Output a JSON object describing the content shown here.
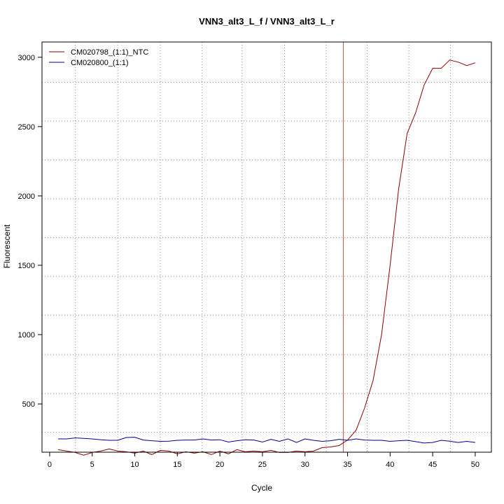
{
  "chart_data": {
    "type": "line",
    "title": "VNN3_alt3_L_f / VNN3_alt3_L_r",
    "xlabel": "Cycle",
    "ylabel": "Fluorescent",
    "xlim": [
      -0.9,
      51.9
    ],
    "ylim": [
      152,
      3110
    ],
    "x_ticks": [
      0,
      5,
      10,
      15,
      20,
      25,
      30,
      35,
      40,
      45,
      50
    ],
    "y_ticks": [
      500,
      1000,
      1500,
      2000,
      2500,
      3000
    ],
    "x_grid": [
      3,
      8,
      13,
      17.9,
      22.6,
      27.6,
      32.5,
      37.3,
      42.2,
      47.1
    ],
    "y_grid": [
      295,
      575,
      855,
      1140,
      1420,
      1700,
      1980,
      2260,
      2540,
      2820
    ],
    "grid": true,
    "legend_position": "top-left",
    "threshold_cycle": 34.5,
    "threshold_color": "#c0504d",
    "x": [
      1,
      2,
      3,
      4,
      5,
      6,
      7,
      8,
      9,
      10,
      11,
      12,
      13,
      14,
      15,
      16,
      17,
      18,
      19,
      20,
      21,
      22,
      23,
      24,
      25,
      26,
      27,
      28,
      29,
      30,
      31,
      32,
      33,
      34,
      35,
      36,
      37,
      38,
      39,
      40,
      41,
      42,
      43,
      44,
      45,
      46,
      47,
      48,
      49,
      50
    ],
    "series": [
      {
        "name": "CM020798_(1:1)_NTC",
        "color": "#8b0000",
        "values": [
          170,
          160,
          150,
          130,
          150,
          160,
          175,
          160,
          155,
          145,
          160,
          135,
          165,
          160,
          140,
          155,
          145,
          155,
          135,
          160,
          140,
          170,
          155,
          160,
          155,
          165,
          150,
          150,
          160,
          155,
          160,
          185,
          190,
          200,
          240,
          310,
          470,
          670,
          1000,
          1500,
          2050,
          2450,
          2600,
          2800,
          2920,
          2920,
          2980,
          2965,
          2940,
          2960
        ]
      },
      {
        "name": "CM020800_(1:1)",
        "color": "#00008b",
        "values": [
          248,
          248,
          255,
          252,
          248,
          242,
          238,
          238,
          258,
          260,
          240,
          235,
          230,
          232,
          238,
          240,
          240,
          248,
          240,
          242,
          225,
          235,
          242,
          240,
          225,
          245,
          230,
          248,
          222,
          248,
          238,
          230,
          235,
          245,
          238,
          248,
          240,
          238,
          238,
          230,
          235,
          238,
          228,
          218,
          222,
          238,
          232,
          222,
          230,
          222
        ]
      }
    ]
  }
}
